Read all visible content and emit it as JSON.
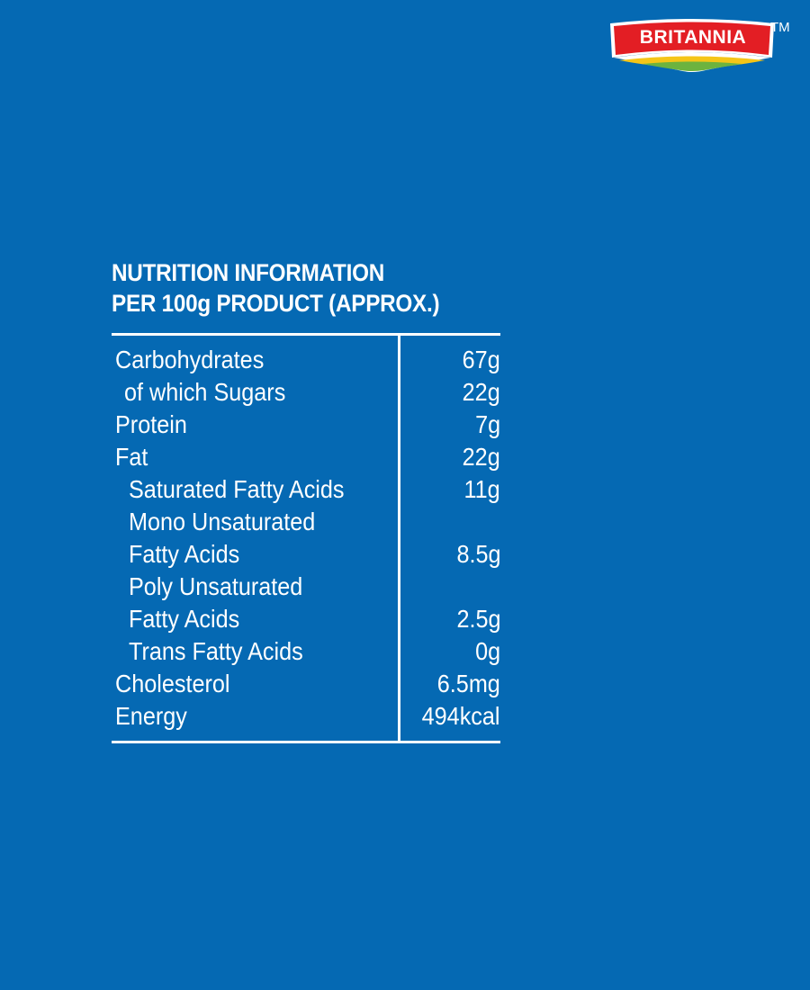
{
  "brand": {
    "name": "BRITANNIA",
    "trademark": "TM",
    "colors": {
      "red": "#e31e24",
      "yellow": "#f5c518",
      "green": "#6cb33f"
    }
  },
  "background_color": "#0569b3",
  "heading": {
    "line1": "NUTRITION INFORMATION",
    "line2": "PER 100g PRODUCT (APPROX.)"
  },
  "rows": [
    {
      "label": "Carbohydrates",
      "value": "67g"
    },
    {
      "label": "of which Sugars",
      "value": "22g"
    },
    {
      "label": "Protein",
      "value": "7g"
    },
    {
      "label": "Fat",
      "value": "22g"
    },
    {
      "label": "Saturated Fatty Acids",
      "value": "11g"
    },
    {
      "label": "Mono Unsaturated",
      "value": ""
    },
    {
      "label": "Fatty Acids",
      "value": "8.5g"
    },
    {
      "label": "Poly Unsaturated",
      "value": ""
    },
    {
      "label": "Fatty Acids",
      "value": "2.5g"
    },
    {
      "label": "Trans Fatty Acids",
      "value": "0g"
    },
    {
      "label": "Cholesterol",
      "value": "6.5mg"
    },
    {
      "label": "Energy",
      "value": "494kcal"
    }
  ]
}
